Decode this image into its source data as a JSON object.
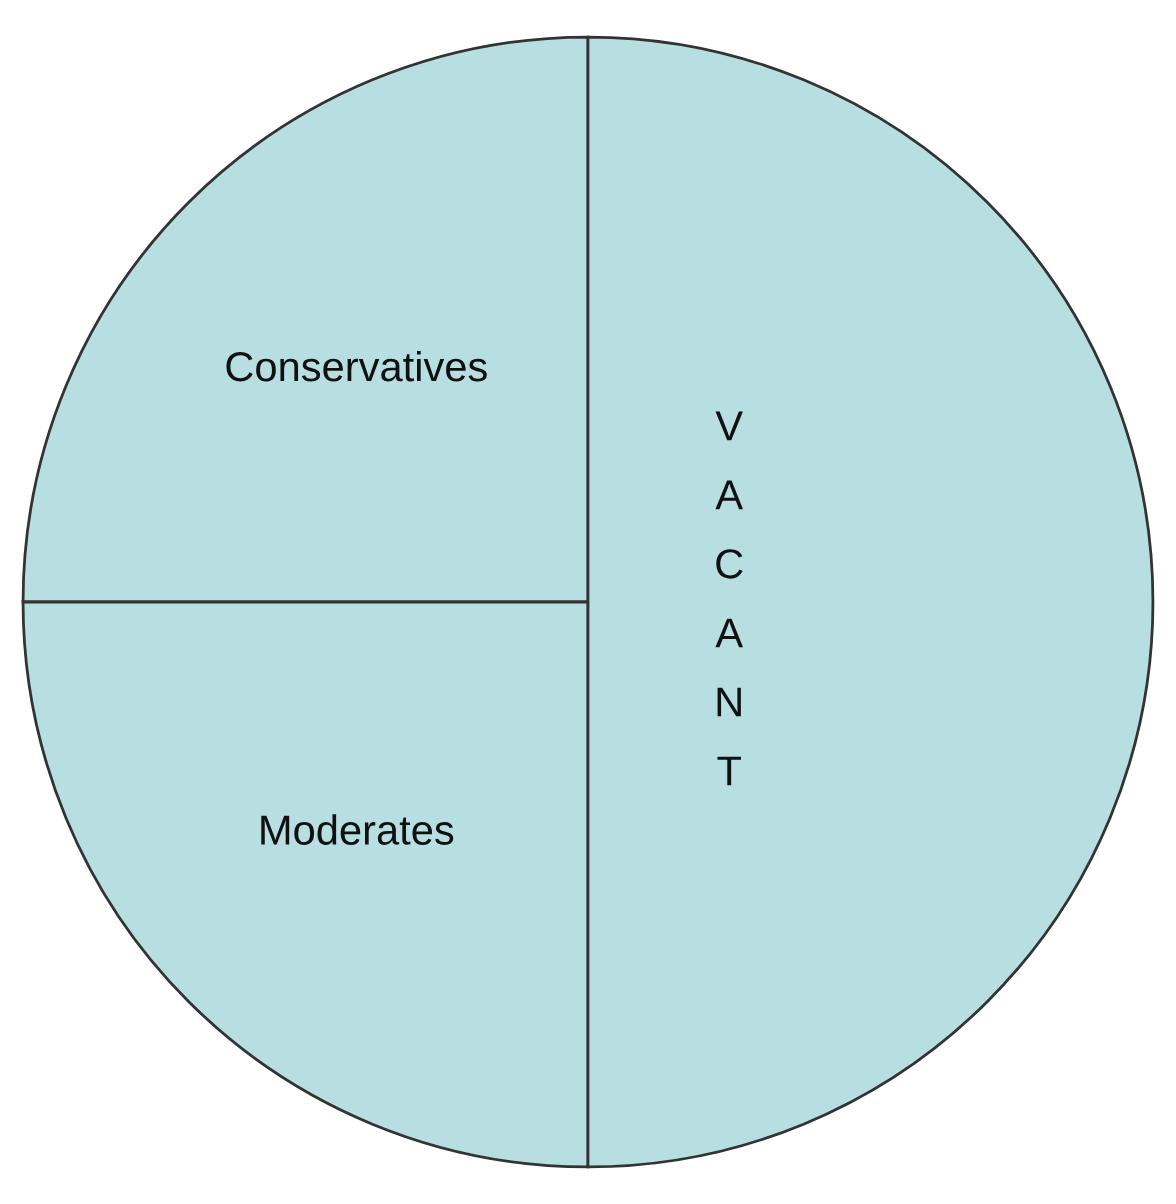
{
  "chart_data": {
    "type": "pie",
    "categories": [
      "Conservatives",
      "Moderates",
      "VACANT"
    ],
    "values": [
      25,
      25,
      50
    ],
    "colors": [
      "#b7dfe2",
      "#b7dfe2",
      "#b7dfe2"
    ]
  }
}
